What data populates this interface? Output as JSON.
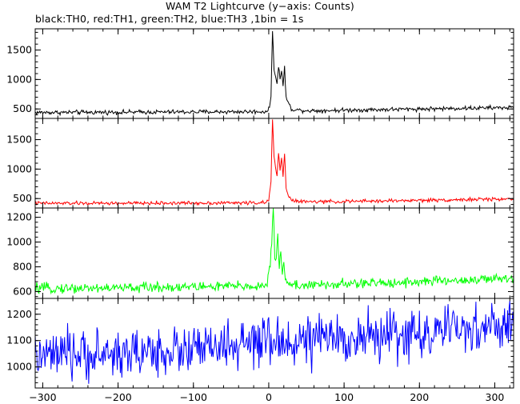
{
  "title": "WAM T2 Lightcurve (y−axis: Counts)",
  "subtitle": "black:TH0, red:TH1, green:TH2, blue:TH3 ,1bin = 1s",
  "chart_data": {
    "type": "line",
    "title": "WAM T2 Lightcurve (y−axis: Counts)",
    "subtitle": "black:TH0, red:TH1, green:TH2, blue:TH3 ,1bin = 1s",
    "xlim": [
      -310,
      325
    ],
    "x_ticks": [
      -300,
      -200,
      -100,
      0,
      100,
      200,
      300
    ],
    "x_tick_labels": [
      "−300",
      "−200",
      "−100",
      "0",
      "100",
      "200",
      "300"
    ],
    "series": [
      {
        "name": "TH0",
        "color": "#000000",
        "ylim": [
          340,
          1860
        ],
        "y_ticks": [
          500,
          1000,
          1500
        ],
        "y_tick_labels": [
          "500",
          "1000",
          "1500"
        ],
        "x": [
          -310,
          -200,
          -100,
          -5,
          0,
          3,
          5,
          7,
          9,
          11,
          13,
          15,
          17,
          19,
          21,
          23,
          26,
          30,
          40,
          60,
          100,
          150,
          200,
          250,
          300,
          325
        ],
        "values": [
          440,
          445,
          450,
          455,
          480,
          700,
          1850,
          1200,
          1050,
          900,
          1250,
          1000,
          1150,
          900,
          1200,
          700,
          600,
          500,
          480,
          470,
          480,
          490,
          500,
          510,
          520,
          525
        ],
        "noise": 18
      },
      {
        "name": "TH1",
        "color": "#ff0000",
        "ylim": [
          340,
          1860
        ],
        "y_ticks": [
          500,
          1000,
          1500
        ],
        "y_tick_labels": [
          "500",
          "1000",
          "1500"
        ],
        "x": [
          -310,
          -200,
          -100,
          -5,
          0,
          3,
          5,
          7,
          9,
          11,
          13,
          15,
          17,
          19,
          21,
          23,
          26,
          30,
          40,
          60,
          100,
          150,
          200,
          250,
          300,
          325
        ],
        "values": [
          420,
          420,
          425,
          430,
          460,
          800,
          1840,
          1200,
          1050,
          850,
          1300,
          1000,
          1200,
          850,
          1280,
          700,
          560,
          470,
          450,
          445,
          450,
          460,
          470,
          480,
          490,
          495
        ],
        "noise": 15
      },
      {
        "name": "TH2",
        "color": "#00ff00",
        "ylim": [
          545,
          1275
        ],
        "y_ticks": [
          600,
          800,
          1000,
          1200
        ],
        "y_tick_labels": [
          "600",
          "800",
          "1000",
          "1200"
        ],
        "x": [
          -310,
          -200,
          -100,
          -5,
          -2,
          2,
          4,
          6,
          8,
          10,
          12,
          14,
          16,
          18,
          20,
          22,
          25,
          30,
          40,
          60,
          100,
          150,
          200,
          250,
          300,
          325
        ],
        "values": [
          625,
          630,
          640,
          645,
          680,
          800,
          1000,
          1260,
          900,
          850,
          1080,
          780,
          960,
          720,
          830,
          700,
          680,
          660,
          650,
          650,
          660,
          670,
          680,
          690,
          700,
          705
        ],
        "noise": 20
      },
      {
        "name": "TH3",
        "color": "#0000ff",
        "ylim": [
          920,
          1260
        ],
        "y_ticks": [
          1000,
          1100,
          1200
        ],
        "y_tick_labels": [
          "1000",
          "1100",
          "1200"
        ],
        "x": [
          -310,
          -300,
          -200,
          -100,
          0,
          100,
          200,
          300,
          325
        ],
        "values": [
          1035,
          1040,
          1050,
          1065,
          1090,
          1110,
          1125,
          1150,
          1160
        ],
        "noise": 45
      }
    ]
  }
}
